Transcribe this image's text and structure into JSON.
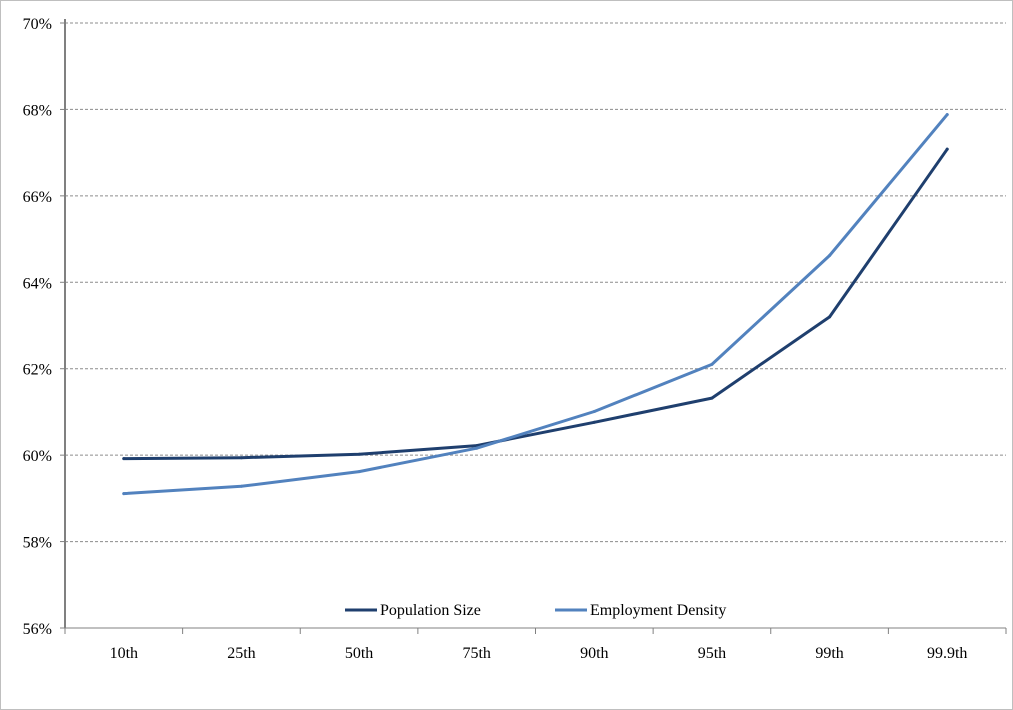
{
  "chart_data": {
    "type": "line",
    "categories": [
      "10th",
      "25th",
      "50th",
      "75th",
      "90th",
      "95th",
      "99th",
      "99.9th"
    ],
    "series": [
      {
        "name": "Population Size",
        "color": "#1f3f6e",
        "values": [
          59.92,
          59.94,
          60.02,
          60.22,
          60.76,
          61.32,
          63.2,
          67.08
        ]
      },
      {
        "name": "Employment Density",
        "color": "#5282be",
        "values": [
          59.11,
          59.28,
          59.62,
          60.16,
          61.01,
          62.1,
          64.62,
          67.88
        ]
      }
    ],
    "ylim": [
      56,
      70
    ],
    "yticks": [
      "56%",
      "58%",
      "60%",
      "62%",
      "64%",
      "66%",
      "68%",
      "70%"
    ],
    "ytick_values": [
      56,
      58,
      60,
      62,
      64,
      66,
      68,
      70
    ],
    "grid": true,
    "legend_position": "bottom-inside",
    "title": "",
    "xlabel": "",
    "ylabel": ""
  }
}
